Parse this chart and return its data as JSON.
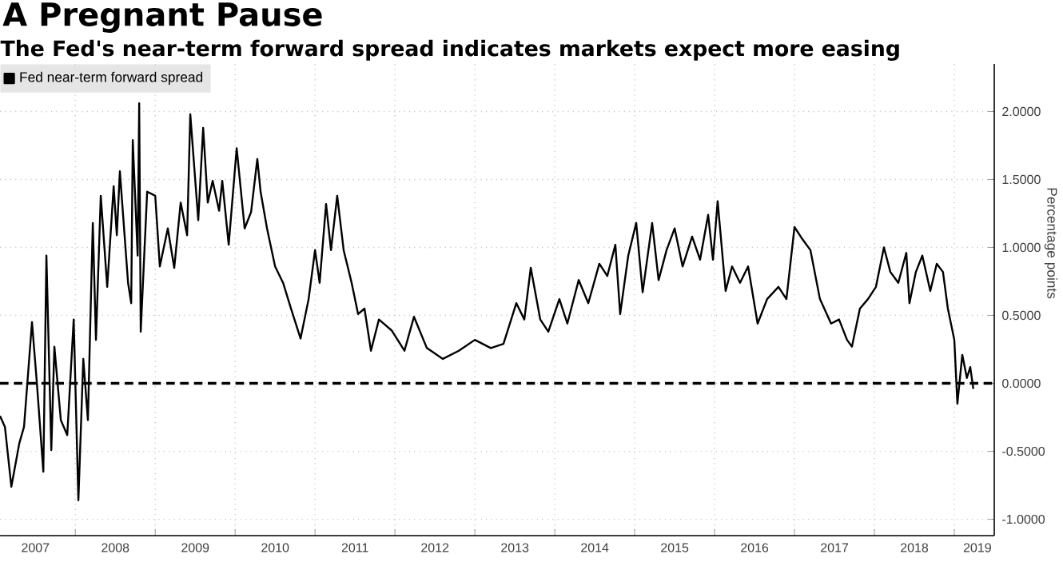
{
  "chart_data": {
    "type": "line",
    "title": "A Pregnant Pause",
    "subtitle": "The Fed's near-term forward spread indicates markets expect more easing",
    "ylabel": "Percentage points",
    "x": [
      "2007-01-22",
      "2007-02-14",
      "2007-03-13",
      "2007-04-19",
      "2007-05-10",
      "2007-06-16",
      "2007-07-08",
      "2007-08-07",
      "2007-08-21",
      "2007-09-13",
      "2007-09-27",
      "2007-10-26",
      "2007-11-25",
      "2007-12-24",
      "2008-01-15",
      "2008-02-07",
      "2008-02-28",
      "2008-03-20",
      "2008-04-04",
      "2008-04-26",
      "2008-05-25",
      "2008-06-24",
      "2008-07-08",
      "2008-07-22",
      "2008-08-29",
      "2008-09-13",
      "2008-09-20",
      "2008-10-12",
      "2008-10-19",
      "2008-10-26",
      "2008-11-25",
      "2009-01-01",
      "2009-01-22",
      "2009-02-28",
      "2009-03-27",
      "2009-04-26",
      "2009-05-25",
      "2009-06-09",
      "2009-07-15",
      "2009-08-07",
      "2009-08-28",
      "2009-09-20",
      "2009-10-19",
      "2009-11-03",
      "2009-12-02",
      "2010-01-08",
      "2010-02-14",
      "2010-03-13",
      "2010-04-11",
      "2010-04-26",
      "2010-05-25",
      "2010-07-01",
      "2010-08-07",
      "2010-09-13",
      "2010-10-26",
      "2010-12-02",
      "2011-01-01",
      "2011-01-22",
      "2011-02-21",
      "2011-03-13",
      "2011-04-11",
      "2011-05-10",
      "2011-06-16",
      "2011-07-15",
      "2011-08-14",
      "2011-09-13",
      "2011-10-19",
      "2011-12-16",
      "2012-02-14",
      "2012-03-27",
      "2012-05-25",
      "2012-08-07",
      "2012-10-19",
      "2013-01-01",
      "2013-03-13",
      "2013-05-10",
      "2013-07-08",
      "2013-08-14",
      "2013-09-13",
      "2013-10-26",
      "2013-12-02",
      "2014-01-22",
      "2014-02-28",
      "2014-04-19",
      "2014-06-02",
      "2014-07-22",
      "2014-08-28",
      "2014-10-04",
      "2014-10-26",
      "2014-12-02",
      "2015-01-08",
      "2015-02-07",
      "2015-03-20",
      "2015-04-19",
      "2015-05-25",
      "2015-07-01",
      "2015-08-07",
      "2015-09-20",
      "2015-10-26",
      "2015-12-02",
      "2015-12-24",
      "2016-01-15",
      "2016-02-21",
      "2016-03-20",
      "2016-04-26",
      "2016-06-02",
      "2016-07-15",
      "2016-08-28",
      "2016-10-19",
      "2016-11-25",
      "2017-01-01",
      "2017-02-07",
      "2017-03-13",
      "2017-04-26",
      "2017-06-16",
      "2017-07-22",
      "2017-08-28",
      "2017-09-20",
      "2017-10-26",
      "2017-12-02",
      "2018-01-08",
      "2018-02-14",
      "2018-03-13",
      "2018-04-19",
      "2018-05-25",
      "2018-06-09",
      "2018-07-08",
      "2018-08-07",
      "2018-09-13",
      "2018-10-12",
      "2018-11-10",
      "2018-12-02",
      "2019-01-01",
      "2019-01-15",
      "2019-02-07",
      "2019-02-28",
      "2019-03-13",
      "2019-03-27"
    ],
    "series": [
      {
        "name": "Fed near-term forward spread",
        "color": "#000000",
        "values": [
          -0.24,
          -0.32,
          -0.76,
          -0.44,
          -0.32,
          0.45,
          0,
          -0.65,
          0.94,
          -0.49,
          0.27,
          -0.27,
          -0.38,
          0.47,
          -0.86,
          0.18,
          -0.27,
          1.18,
          0.32,
          1.38,
          0.71,
          1.45,
          1.09,
          1.56,
          0.74,
          0.59,
          1.79,
          0.94,
          2.06,
          0.38,
          1.41,
          1.38,
          0.86,
          1.14,
          0.85,
          1.33,
          1.09,
          1.98,
          1.2,
          1.88,
          1.33,
          1.49,
          1.27,
          1.49,
          1.02,
          1.73,
          1.14,
          1.26,
          1.65,
          1.41,
          1.14,
          0.86,
          0.74,
          0.55,
          0.33,
          0.62,
          0.98,
          0.74,
          1.32,
          0.98,
          1.38,
          0.98,
          0.74,
          0.51,
          0.55,
          0.24,
          0.47,
          0.39,
          0.24,
          0.49,
          0.26,
          0.18,
          0.24,
          0.32,
          0.26,
          0.29,
          0.59,
          0.47,
          0.85,
          0.47,
          0.38,
          0.62,
          0.44,
          0.76,
          0.59,
          0.88,
          0.79,
          1.02,
          0.51,
          0.94,
          1.18,
          0.67,
          1.18,
          0.76,
          0.98,
          1.14,
          0.86,
          1.08,
          0.91,
          1.24,
          0.91,
          1.34,
          0.68,
          0.86,
          0.74,
          0.86,
          0.44,
          0.62,
          0.71,
          0.62,
          1.15,
          1.06,
          0.98,
          0.62,
          0.44,
          0.47,
          0.32,
          0.27,
          0.55,
          0.62,
          0.71,
          1.0,
          0.82,
          0.74,
          0.96,
          0.59,
          0.82,
          0.94,
          0.68,
          0.88,
          0.82,
          0.55,
          0.32,
          -0.15,
          0.21,
          0.04,
          0.12,
          -0.04
        ]
      }
    ],
    "xlim": [
      "2007-01-22",
      "2019-07-01"
    ],
    "ylim": [
      -1.12,
      2.35
    ],
    "xticks": [
      {
        "value": "2007-07-01",
        "label": "2007"
      },
      {
        "value": "2008-01-01",
        "label": null
      },
      {
        "value": "2008-07-01",
        "label": "2008"
      },
      {
        "value": "2009-01-01",
        "label": null
      },
      {
        "value": "2009-07-01",
        "label": "2009"
      },
      {
        "value": "2010-01-01",
        "label": null
      },
      {
        "value": "2010-07-01",
        "label": "2010"
      },
      {
        "value": "2011-01-01",
        "label": null
      },
      {
        "value": "2011-07-01",
        "label": "2011"
      },
      {
        "value": "2012-01-01",
        "label": null
      },
      {
        "value": "2012-07-01",
        "label": "2012"
      },
      {
        "value": "2013-01-01",
        "label": null
      },
      {
        "value": "2013-07-01",
        "label": "2013"
      },
      {
        "value": "2014-01-01",
        "label": null
      },
      {
        "value": "2014-07-01",
        "label": "2014"
      },
      {
        "value": "2015-01-01",
        "label": null
      },
      {
        "value": "2015-07-01",
        "label": "2015"
      },
      {
        "value": "2016-01-01",
        "label": null
      },
      {
        "value": "2016-07-01",
        "label": "2016"
      },
      {
        "value": "2017-01-01",
        "label": null
      },
      {
        "value": "2017-07-01",
        "label": "2017"
      },
      {
        "value": "2018-01-01",
        "label": null
      },
      {
        "value": "2018-07-01",
        "label": "2018"
      },
      {
        "value": "2019-01-01",
        "label": null
      },
      {
        "value": "2019-04-15",
        "label": "2019"
      }
    ],
    "yticks": [
      {
        "value": -1,
        "label": "-1.0000"
      },
      {
        "value": -0.5,
        "label": "-0.5000"
      },
      {
        "value": 0,
        "label": "0.0000"
      },
      {
        "value": 0.5,
        "label": "0.5000"
      },
      {
        "value": 1,
        "label": "1.0000"
      },
      {
        "value": 1.5,
        "label": "1.5000"
      },
      {
        "value": 2,
        "label": "2.0000"
      }
    ],
    "ref_lines": [
      {
        "axis": "y",
        "value": 0,
        "color": "#000000",
        "line_style": "dashed"
      }
    ],
    "grid": true,
    "legend": "top left"
  }
}
